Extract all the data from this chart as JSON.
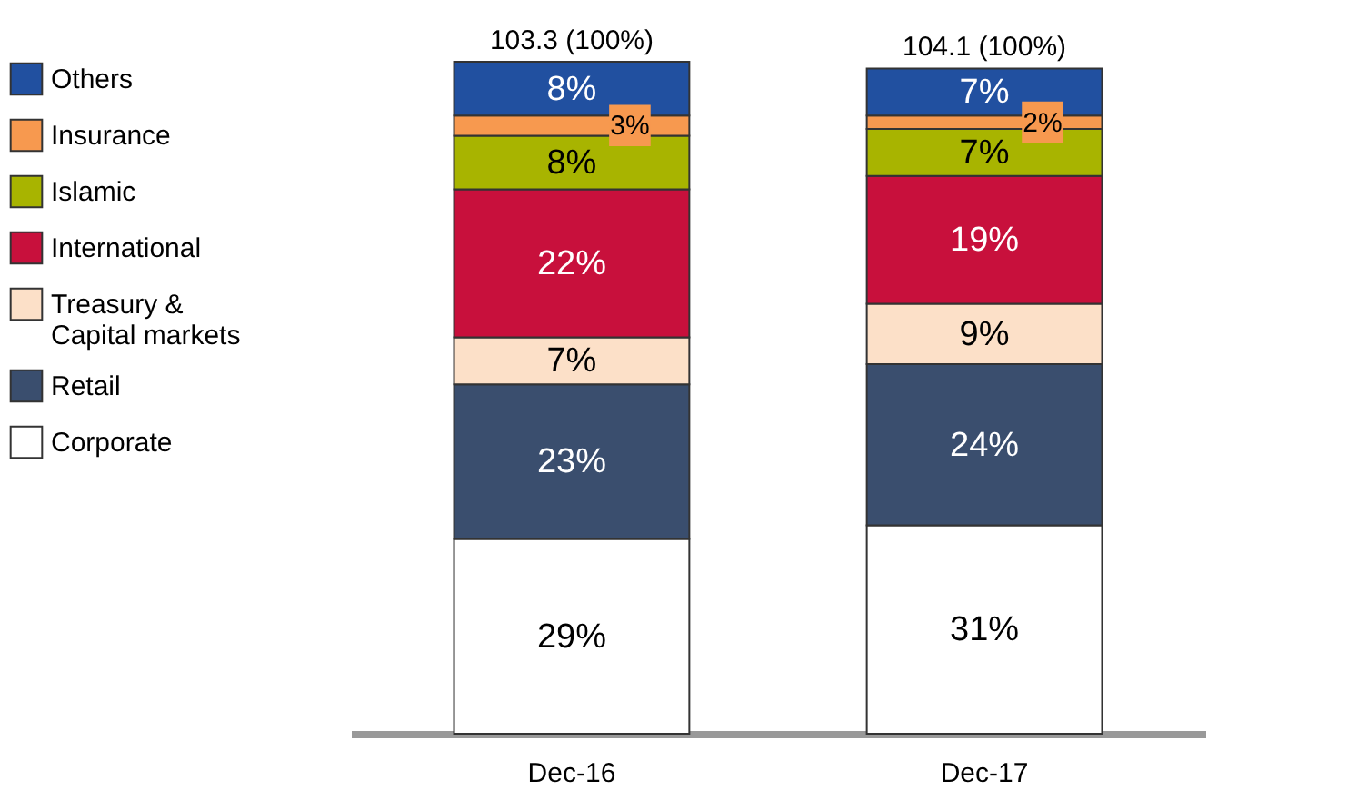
{
  "chart_data": {
    "type": "bar",
    "stacked": true,
    "categories": [
      "Dec-16",
      "Dec-17"
    ],
    "series": [
      {
        "name": "Corporate",
        "color": "#ffffff",
        "values": [
          29,
          31
        ],
        "value_labels": [
          "29%",
          "31%"
        ]
      },
      {
        "name": "Retail",
        "color": "#3a4e6e",
        "values": [
          23,
          24
        ],
        "value_labels": [
          "23%",
          "24%"
        ]
      },
      {
        "name": "Treasury & Capital markets",
        "color": "#fce0c8",
        "values": [
          7,
          9
        ],
        "value_labels": [
          "7%",
          "9%"
        ]
      },
      {
        "name": "International",
        "color": "#c8103c",
        "values": [
          22,
          19
        ],
        "value_labels": [
          "22%",
          "19%"
        ]
      },
      {
        "name": "Islamic",
        "color": "#a8b400",
        "values": [
          8,
          7
        ],
        "value_labels": [
          "8%",
          "7%"
        ]
      },
      {
        "name": "Insurance",
        "color": "#f7994f",
        "values": [
          3,
          2
        ],
        "value_labels": [
          "3%",
          "2%"
        ]
      },
      {
        "name": "Others",
        "color": "#2150a0",
        "values": [
          8,
          7
        ],
        "value_labels": [
          "8%",
          "7%"
        ]
      }
    ],
    "totals": [
      "103.3 (100%)",
      "104.1 (100%)"
    ],
    "legend": "left"
  }
}
